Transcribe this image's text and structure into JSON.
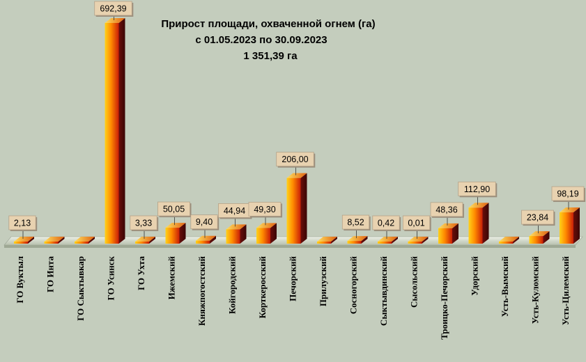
{
  "chart_data": {
    "type": "bar",
    "title": "Прирост площади, охваченной огнем (га)",
    "subtitle": "с 01.05.2023  по  30.09.2023",
    "total": "1 351,39 га",
    "categories": [
      "ГО Вуктыл",
      "ГО Инта",
      "ГО Сыктывкар",
      "ГО Усинск",
      "ГО Ухта",
      "Ижемский",
      "Княжпогостский",
      "Койгородский",
      "Корткеросский",
      "Печорский",
      "Прилузский",
      "Сосногорский",
      "Сыктывдинский",
      "Сысольский",
      "Троицко-Печорский",
      "Удорский",
      "Усть-Вымский",
      "Усть-Куломский",
      "Усть-Цилемский"
    ],
    "values": [
      2.13,
      0,
      0,
      692.39,
      3.33,
      50.05,
      9.4,
      44.94,
      49.3,
      206.0,
      0,
      8.52,
      0.42,
      0.01,
      48.36,
      112.9,
      0,
      23.84,
      98.19
    ],
    "data_labels": [
      "2,13",
      "",
      "",
      "692,39",
      "3,33",
      "50,05",
      "9,40",
      "44,94",
      "49,30",
      "206,00",
      "",
      "8,52",
      "0,42",
      "0,01",
      "48,36",
      "112,90",
      "",
      "23,84",
      "98,19"
    ],
    "ylim": [
      0,
      692.39
    ],
    "grid": false,
    "legend": "none",
    "colors": {
      "background": "#c4cdbd",
      "bar_light": "#ffd21a",
      "bar_mid": "#ff7a00",
      "bar_dark": "#c01e0a",
      "bar_side": "#5a0a0a",
      "label_bg": "#e8d2b0"
    }
  }
}
